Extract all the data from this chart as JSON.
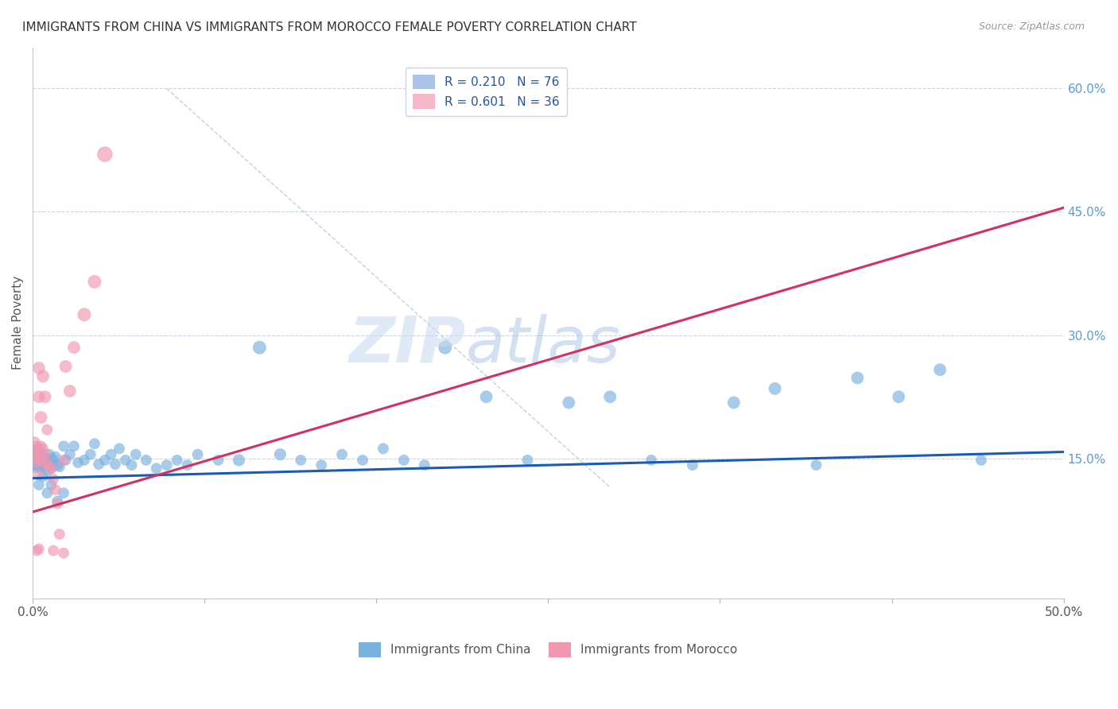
{
  "title": "IMMIGRANTS FROM CHINA VS IMMIGRANTS FROM MOROCCO FEMALE POVERTY CORRELATION CHART",
  "source": "Source: ZipAtlas.com",
  "ylabel": "Female Poverty",
  "xlim": [
    0.0,
    0.5
  ],
  "ylim": [
    -0.02,
    0.65
  ],
  "xtick_positions": [
    0.0,
    0.0833,
    0.1667,
    0.25,
    0.3333,
    0.4167,
    0.5
  ],
  "xtick_labels": [
    "0.0%",
    "",
    "",
    "",
    "",
    "",
    "50.0%"
  ],
  "ytick_labels_right": [
    "15.0%",
    "30.0%",
    "45.0%",
    "60.0%"
  ],
  "ytick_vals_right": [
    0.15,
    0.3,
    0.45,
    0.6
  ],
  "legend_entries": [
    {
      "label": "R = 0.210   N = 76",
      "color": "#aac4e8"
    },
    {
      "label": "R = 0.601   N = 36",
      "color": "#f5b8c8"
    }
  ],
  "china_color": "#7ab0e0",
  "morocco_color": "#f097b0",
  "china_line_color": "#1a5bb5",
  "morocco_line_color": "#d43060",
  "watermark_zip": "ZIP",
  "watermark_atlas": "atlas",
  "background_color": "#ffffff",
  "grid_color": "#c8d4e8",
  "china_line": {
    "x": [
      0.0,
      0.5
    ],
    "y": [
      0.126,
      0.158
    ]
  },
  "morocco_line": {
    "x": [
      0.0,
      0.5
    ],
    "y": [
      0.085,
      0.455
    ]
  },
  "diag_line": {
    "x": [
      0.065,
      0.28
    ],
    "y": [
      0.6,
      0.115
    ]
  },
  "china_x": [
    0.001,
    0.002,
    0.002,
    0.002,
    0.003,
    0.003,
    0.003,
    0.004,
    0.004,
    0.005,
    0.005,
    0.006,
    0.006,
    0.007,
    0.007,
    0.008,
    0.008,
    0.009,
    0.009,
    0.01,
    0.011,
    0.012,
    0.013,
    0.015,
    0.016,
    0.018,
    0.02,
    0.022,
    0.025,
    0.028,
    0.03,
    0.032,
    0.035,
    0.038,
    0.04,
    0.042,
    0.045,
    0.048,
    0.05,
    0.055,
    0.06,
    0.065,
    0.07,
    0.075,
    0.08,
    0.09,
    0.1,
    0.11,
    0.12,
    0.13,
    0.14,
    0.15,
    0.16,
    0.17,
    0.18,
    0.19,
    0.2,
    0.22,
    0.24,
    0.26,
    0.28,
    0.3,
    0.32,
    0.34,
    0.36,
    0.38,
    0.4,
    0.42,
    0.44,
    0.46,
    0.003,
    0.005,
    0.007,
    0.009,
    0.012,
    0.015
  ],
  "china_y": [
    0.148,
    0.145,
    0.152,
    0.155,
    0.14,
    0.148,
    0.155,
    0.145,
    0.152,
    0.14,
    0.15,
    0.143,
    0.15,
    0.135,
    0.148,
    0.155,
    0.143,
    0.138,
    0.15,
    0.148,
    0.152,
    0.142,
    0.14,
    0.165,
    0.148,
    0.155,
    0.165,
    0.145,
    0.148,
    0.155,
    0.168,
    0.143,
    0.148,
    0.155,
    0.143,
    0.162,
    0.148,
    0.142,
    0.155,
    0.148,
    0.138,
    0.142,
    0.148,
    0.142,
    0.155,
    0.148,
    0.148,
    0.285,
    0.155,
    0.148,
    0.142,
    0.155,
    0.148,
    0.162,
    0.148,
    0.142,
    0.285,
    0.225,
    0.148,
    0.218,
    0.225,
    0.148,
    0.142,
    0.218,
    0.235,
    0.142,
    0.248,
    0.225,
    0.258,
    0.148,
    0.118,
    0.128,
    0.108,
    0.118,
    0.098,
    0.108
  ],
  "china_s": [
    350,
    350,
    350,
    350,
    100,
    100,
    100,
    100,
    100,
    100,
    100,
    100,
    100,
    100,
    100,
    100,
    100,
    100,
    100,
    100,
    100,
    100,
    100,
    100,
    100,
    100,
    100,
    100,
    100,
    100,
    100,
    100,
    100,
    100,
    100,
    100,
    100,
    100,
    100,
    100,
    100,
    100,
    100,
    100,
    100,
    100,
    120,
    150,
    120,
    100,
    100,
    100,
    100,
    100,
    100,
    100,
    150,
    130,
    100,
    130,
    130,
    100,
    100,
    130,
    130,
    100,
    130,
    130,
    130,
    100,
    100,
    100,
    100,
    100,
    100,
    100
  ],
  "morocco_x": [
    0.001,
    0.001,
    0.001,
    0.002,
    0.002,
    0.002,
    0.003,
    0.003,
    0.003,
    0.004,
    0.004,
    0.005,
    0.005,
    0.006,
    0.006,
    0.007,
    0.007,
    0.008,
    0.009,
    0.01,
    0.011,
    0.012,
    0.013,
    0.015,
    0.016,
    0.018,
    0.02,
    0.025,
    0.03,
    0.035,
    0.002,
    0.003,
    0.004,
    0.005,
    0.01,
    0.015
  ],
  "morocco_y": [
    0.15,
    0.16,
    0.17,
    0.145,
    0.155,
    0.165,
    0.13,
    0.225,
    0.26,
    0.165,
    0.2,
    0.25,
    0.145,
    0.225,
    0.155,
    0.185,
    0.145,
    0.14,
    0.138,
    0.125,
    0.112,
    0.095,
    0.058,
    0.148,
    0.262,
    0.232,
    0.285,
    0.325,
    0.365,
    0.52,
    0.038,
    0.04,
    0.155,
    0.162,
    0.038,
    0.035
  ],
  "morocco_s": [
    100,
    100,
    100,
    100,
    100,
    100,
    100,
    130,
    130,
    100,
    130,
    130,
    100,
    130,
    100,
    100,
    100,
    100,
    100,
    100,
    100,
    100,
    100,
    100,
    130,
    130,
    130,
    150,
    150,
    200,
    100,
    100,
    100,
    100,
    100,
    100
  ]
}
